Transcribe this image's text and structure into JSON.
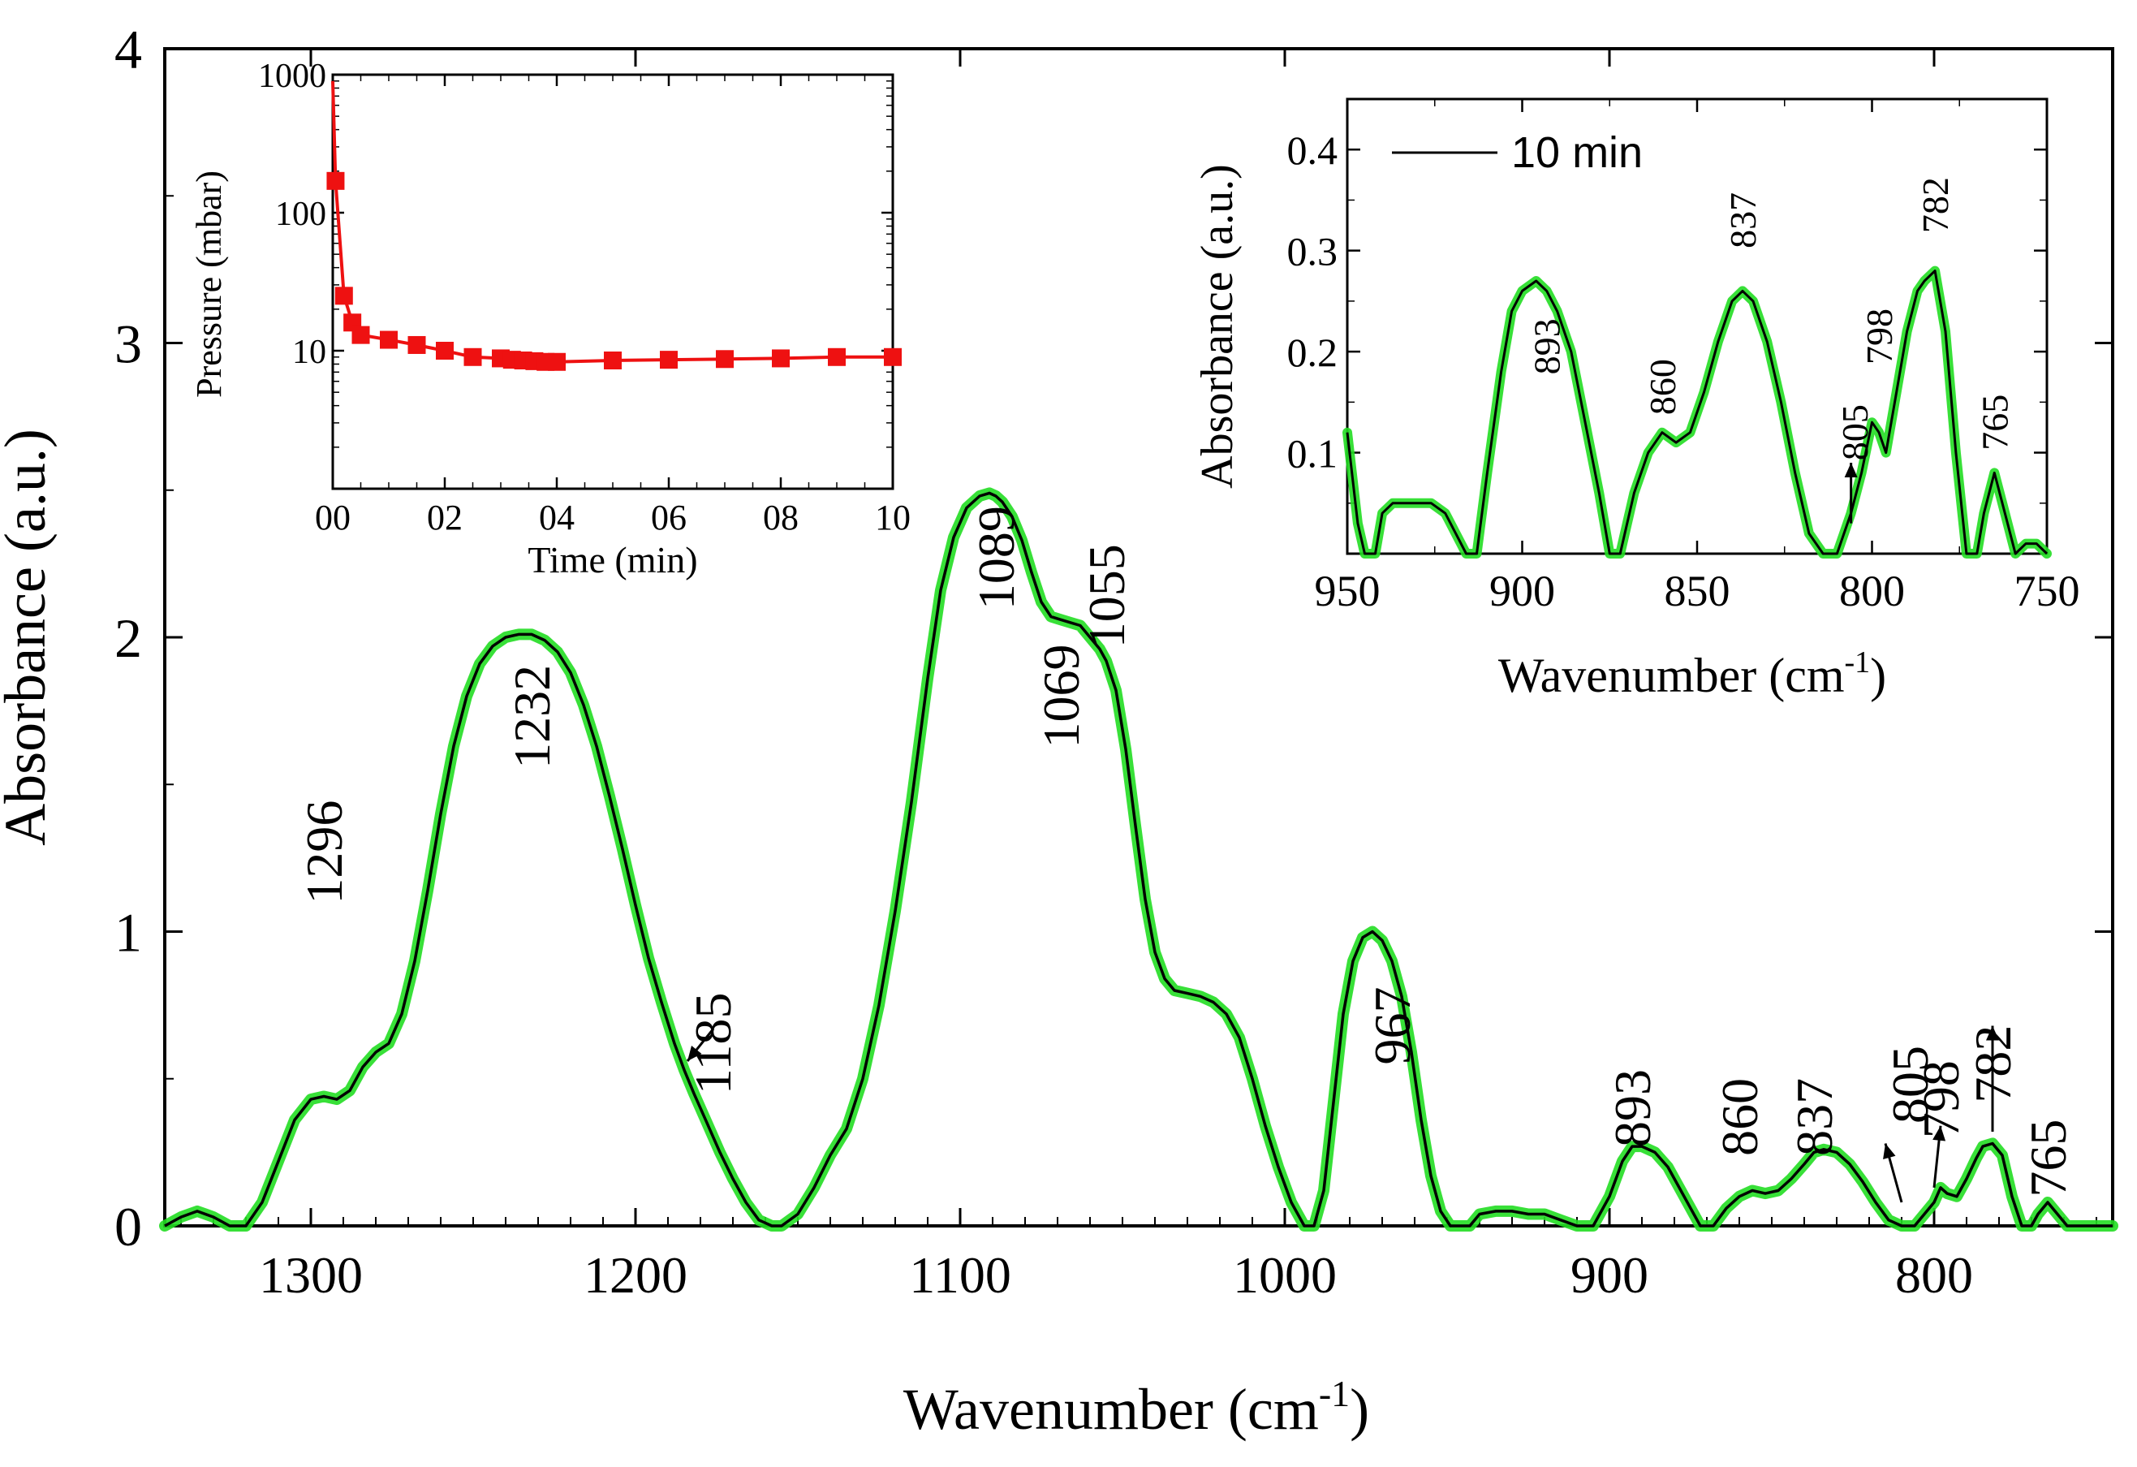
{
  "chart_data": [
    {
      "id": "main",
      "type": "line",
      "xlabel": "Wavenumber (cm",
      "xlabel_sup": "-1",
      "xlabel_close": ")",
      "ylabel": "Absorbance (a.u.)",
      "xlim": [
        1345,
        745
      ],
      "ylim": [
        0,
        4
      ],
      "xticks": [
        1300,
        1200,
        1100,
        1000,
        900,
        800
      ],
      "yticks": [
        0,
        1,
        2,
        3,
        4
      ],
      "line_color": "#000000",
      "band_color": "#22dd22",
      "series": [
        {
          "name": "spectrum",
          "x": [
            1345,
            1340,
            1335,
            1330,
            1325,
            1320,
            1315,
            1310,
            1305,
            1300,
            1296,
            1292,
            1288,
            1284,
            1280,
            1276,
            1272,
            1268,
            1264,
            1260,
            1256,
            1252,
            1248,
            1244,
            1240,
            1236,
            1232,
            1228,
            1224,
            1220,
            1216,
            1212,
            1208,
            1204,
            1200,
            1196,
            1192,
            1188,
            1185,
            1182,
            1178,
            1174,
            1170,
            1166,
            1162,
            1158,
            1155,
            1150,
            1145,
            1140,
            1135,
            1130,
            1125,
            1120,
            1115,
            1110,
            1106,
            1102,
            1098,
            1094,
            1091,
            1089,
            1087,
            1084,
            1081,
            1078,
            1075,
            1072,
            1069,
            1066,
            1063,
            1060,
            1057,
            1055,
            1052,
            1049,
            1046,
            1043,
            1040,
            1037,
            1034,
            1030,
            1026,
            1022,
            1018,
            1014,
            1010,
            1006,
            1002,
            998,
            994,
            991,
            988,
            985,
            982,
            979,
            976,
            973,
            970,
            967,
            964,
            961,
            958,
            955,
            952,
            949,
            946,
            943,
            940,
            935,
            930,
            925,
            920,
            915,
            910,
            905,
            900,
            896,
            893,
            890,
            886,
            882,
            878,
            875,
            872,
            868,
            864,
            860,
            856,
            852,
            848,
            844,
            840,
            837,
            834,
            830,
            826,
            822,
            818,
            814,
            810,
            806,
            803,
            800,
            798,
            796,
            793,
            790,
            787,
            785,
            782,
            779,
            776,
            773,
            770,
            768,
            765,
            762,
            759,
            756,
            750,
            745
          ],
          "y": [
            0.0,
            0.03,
            0.05,
            0.03,
            0.0,
            0.0,
            0.08,
            0.22,
            0.36,
            0.43,
            0.44,
            0.43,
            0.46,
            0.54,
            0.59,
            0.62,
            0.72,
            0.9,
            1.14,
            1.4,
            1.63,
            1.8,
            1.91,
            1.97,
            2.0,
            2.01,
            2.01,
            1.99,
            1.95,
            1.88,
            1.77,
            1.63,
            1.46,
            1.28,
            1.09,
            0.91,
            0.76,
            0.62,
            0.53,
            0.45,
            0.35,
            0.25,
            0.16,
            0.08,
            0.02,
            0.0,
            0.0,
            0.04,
            0.13,
            0.24,
            0.33,
            0.5,
            0.75,
            1.07,
            1.44,
            1.86,
            2.16,
            2.34,
            2.44,
            2.48,
            2.49,
            2.48,
            2.46,
            2.41,
            2.33,
            2.22,
            2.12,
            2.07,
            2.06,
            2.05,
            2.04,
            2.0,
            1.96,
            1.92,
            1.82,
            1.62,
            1.36,
            1.11,
            0.93,
            0.84,
            0.8,
            0.79,
            0.78,
            0.76,
            0.72,
            0.64,
            0.5,
            0.34,
            0.2,
            0.08,
            0.0,
            0.0,
            0.12,
            0.42,
            0.72,
            0.9,
            0.98,
            1.0,
            0.97,
            0.9,
            0.78,
            0.59,
            0.36,
            0.17,
            0.05,
            0.0,
            0.0,
            0.0,
            0.04,
            0.05,
            0.05,
            0.04,
            0.04,
            0.02,
            0.0,
            0.0,
            0.1,
            0.22,
            0.27,
            0.27,
            0.25,
            0.2,
            0.12,
            0.06,
            0.0,
            0.0,
            0.06,
            0.1,
            0.12,
            0.11,
            0.12,
            0.16,
            0.21,
            0.25,
            0.26,
            0.25,
            0.21,
            0.15,
            0.08,
            0.02,
            0.0,
            0.0,
            0.04,
            0.08,
            0.13,
            0.11,
            0.1,
            0.16,
            0.23,
            0.27,
            0.28,
            0.24,
            0.1,
            0.0,
            0.0,
            0.04,
            0.08,
            0.04,
            0.0,
            0.0,
            0.0,
            0.0
          ]
        }
      ],
      "annotations": [
        {
          "label": "1296",
          "x": 1296
        },
        {
          "label": "1232",
          "x": 1232
        },
        {
          "label": "1185",
          "x": 1185
        },
        {
          "label": "1089",
          "x": 1089
        },
        {
          "label": "1069",
          "x": 1069
        },
        {
          "label": "1055",
          "x": 1055
        },
        {
          "label": "967",
          "x": 967
        },
        {
          "label": "893",
          "x": 893
        },
        {
          "label": "860",
          "x": 860
        },
        {
          "label": "837",
          "x": 837
        },
        {
          "label": "805",
          "x": 805
        },
        {
          "label": "798",
          "x": 798
        },
        {
          "label": "782",
          "x": 782
        },
        {
          "label": "765",
          "x": 765
        }
      ]
    },
    {
      "id": "inset_pressure",
      "type": "scatter",
      "xlabel": "Time (min)",
      "ylabel": "Pressure (mbar)",
      "xlim": [
        0,
        10
      ],
      "ylim_log": [
        1,
        1000
      ],
      "xticks": [
        "00",
        "02",
        "04",
        "06",
        "08",
        "10"
      ],
      "yticks": [
        "10",
        "100",
        "1000"
      ],
      "marker_color": "#ee1111",
      "series": [
        {
          "name": "pressure",
          "x": [
            0,
            0.05,
            0.2,
            0.35,
            0.5,
            1.0,
            1.5,
            2.0,
            2.5,
            3.0,
            3.2,
            3.4,
            3.6,
            3.8,
            4.0,
            5.0,
            6.0,
            7.0,
            8.0,
            9.0,
            10.0
          ],
          "y": [
            900,
            170,
            25,
            16,
            13,
            12,
            11,
            10,
            9,
            8.8,
            8.6,
            8.5,
            8.4,
            8.3,
            8.3,
            8.5,
            8.6,
            8.7,
            8.8,
            9.0,
            9.0
          ]
        }
      ]
    },
    {
      "id": "inset_zoom",
      "type": "line",
      "xlabel": "Wavenumber (cm",
      "xlabel_sup": "-1",
      "xlabel_close": ")",
      "ylabel": "Absorbance (a.u.)",
      "xlim": [
        950,
        750
      ],
      "ylim": [
        0,
        0.45
      ],
      "xticks": [
        950,
        900,
        850,
        800,
        750
      ],
      "yticks": [
        0.1,
        0.2,
        0.3,
        0.4
      ],
      "legend": "10 min",
      "series": [
        {
          "name": "10 min",
          "x": [
            950,
            947,
            945,
            942,
            940,
            937,
            934,
            930,
            926,
            922,
            919,
            916,
            913,
            910,
            906,
            903,
            900,
            896,
            893,
            890,
            886,
            882,
            878,
            875,
            872,
            868,
            864,
            860,
            856,
            852,
            848,
            844,
            840,
            837,
            834,
            830,
            826,
            822,
            818,
            814,
            810,
            806,
            803,
            800,
            798,
            796,
            793,
            790,
            787,
            785,
            782,
            779,
            776,
            773,
            770,
            768,
            765,
            762,
            759,
            756,
            753,
            750
          ],
          "y": [
            0.12,
            0.03,
            0.0,
            0.0,
            0.04,
            0.05,
            0.05,
            0.05,
            0.05,
            0.04,
            0.02,
            0.0,
            0.0,
            0.08,
            0.18,
            0.24,
            0.26,
            0.27,
            0.26,
            0.24,
            0.2,
            0.13,
            0.06,
            0.0,
            0.0,
            0.06,
            0.1,
            0.12,
            0.11,
            0.12,
            0.16,
            0.21,
            0.25,
            0.26,
            0.25,
            0.21,
            0.15,
            0.08,
            0.02,
            0.0,
            0.0,
            0.04,
            0.08,
            0.13,
            0.12,
            0.1,
            0.16,
            0.22,
            0.26,
            0.27,
            0.28,
            0.22,
            0.1,
            0.0,
            0.0,
            0.04,
            0.08,
            0.04,
            0.0,
            0.01,
            0.01,
            0.0
          ]
        }
      ],
      "annotations": [
        {
          "label": "893",
          "x": 893
        },
        {
          "label": "860",
          "x": 860
        },
        {
          "label": "837",
          "x": 837
        },
        {
          "label": "805",
          "x": 805
        },
        {
          "label": "798",
          "x": 798
        },
        {
          "label": "782",
          "x": 782
        },
        {
          "label": "765",
          "x": 765
        }
      ]
    }
  ]
}
